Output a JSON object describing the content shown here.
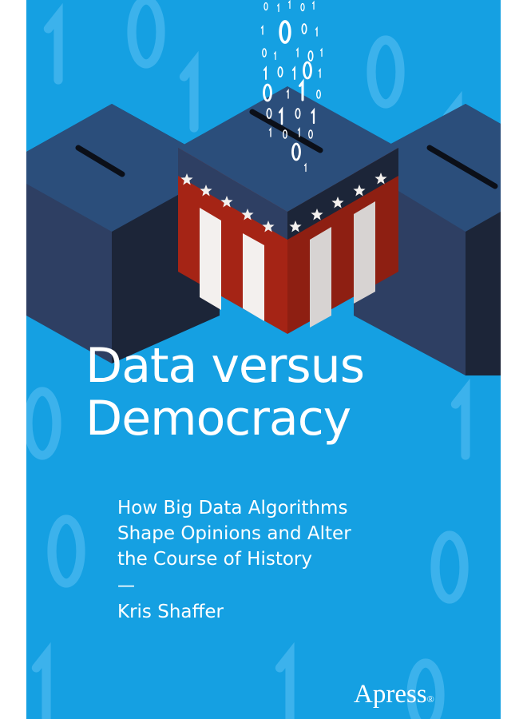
{
  "book": {
    "title_line1": "Data versus",
    "title_line2": "Democracy",
    "subtitle_line1": "How Big Data Algorithms",
    "subtitle_line2": "Shape Opinions and Alter",
    "subtitle_line3": "the Course of History",
    "dash": "—",
    "author": "Kris Shaffer",
    "publisher": "Apress",
    "publisher_mark": "®"
  },
  "colors": {
    "background": "#15a0e2",
    "box_top": "#2b4e7b",
    "box_side_light": "#2e3f63",
    "box_side_dark": "#1c2538",
    "stripe_red": "#a52415",
    "stripe_white": "#f3f0ee"
  },
  "icons": [
    "ballot-box-illustration",
    "binary-digits-stream"
  ]
}
